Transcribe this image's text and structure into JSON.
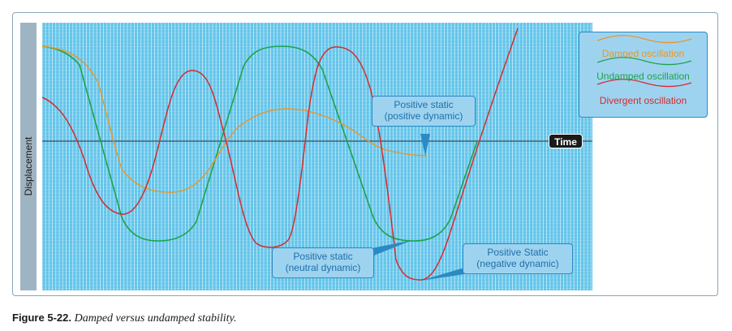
{
  "diagram": {
    "y_axis_label": "Displacement",
    "x_axis_label": "Time",
    "legend": [
      {
        "label": "Damped oscillation",
        "color": "#e8962a"
      },
      {
        "label": "Undamped oscillation",
        "color": "#1ea34a"
      },
      {
        "label": "Divergent oscillation",
        "color": "#d62b2b"
      }
    ],
    "callouts": {
      "positive_dynamic": {
        "line1": "Positive static",
        "line2": "(positive dynamic)"
      },
      "neutral_dynamic": {
        "line1": "Positive static",
        "line2": "(neutral dynamic)"
      },
      "negative_dynamic": {
        "line1": "Positive Static",
        "line2": "(negative dynamic)"
      }
    },
    "colors": {
      "grid_background": "#62c4ea",
      "grid_lines": "#ffffff",
      "callout_fill": "#9ed3f0",
      "callout_border": "#2a8ac4"
    }
  },
  "caption": {
    "label": "Figure 5-22.",
    "text": "Damped versus undamped stability."
  }
}
